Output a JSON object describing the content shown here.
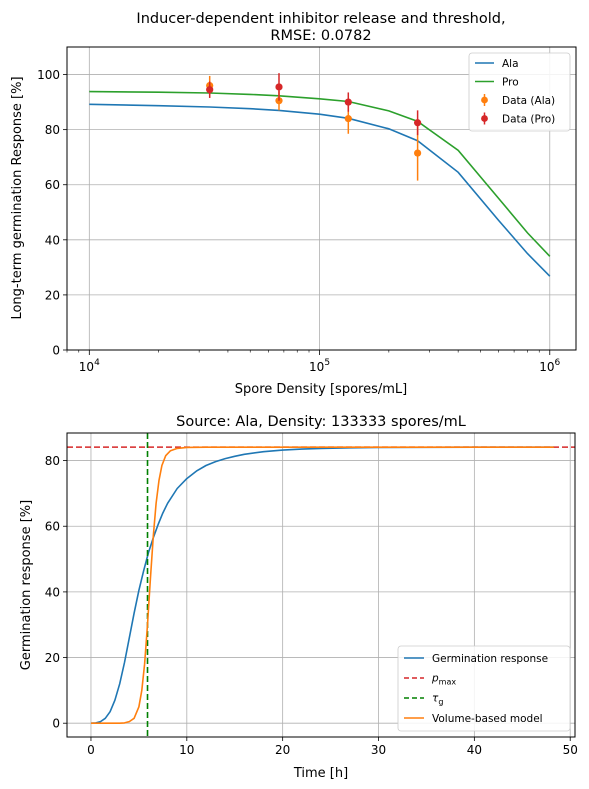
{
  "chart_data": [
    {
      "type": "line",
      "title": "Inducer-dependent inhibitor release and threshold,",
      "subtitle": "RMSE: 0.0782",
      "xlabel": "Spore Density [spores/mL]",
      "ylabel": "Long-term germination Response [%]",
      "xscale": "log",
      "xlim": [
        8000,
        1300000
      ],
      "ylim": [
        0,
        110
      ],
      "yticks": [
        0,
        20,
        40,
        60,
        80,
        100
      ],
      "xticks": [
        {
          "value": 10000,
          "base": "10",
          "exp": "4"
        },
        {
          "value": 100000,
          "base": "10",
          "exp": "5"
        },
        {
          "value": 1000000,
          "base": "10",
          "exp": "6"
        }
      ],
      "grid": true,
      "legend_position": "top-right",
      "series": [
        {
          "name": "Ala",
          "kind": "line",
          "color": "#1f77b4",
          "x": [
            10000,
            20000,
            33333,
            50000,
            66667,
            100000,
            133333,
            200000,
            266667,
            400000,
            600000,
            800000,
            1000000
          ],
          "y": [
            89.2,
            88.7,
            88.2,
            87.6,
            87.0,
            85.6,
            84.1,
            80.3,
            76.0,
            64.5,
            47.0,
            35.0,
            26.8
          ]
        },
        {
          "name": "Pro",
          "kind": "line",
          "color": "#2ca02c",
          "x": [
            10000,
            20000,
            33333,
            50000,
            66667,
            100000,
            133333,
            200000,
            266667,
            400000,
            600000,
            800000,
            1000000
          ],
          "y": [
            93.8,
            93.6,
            93.3,
            92.8,
            92.3,
            91.2,
            90.2,
            86.8,
            83.0,
            72.5,
            55.0,
            42.5,
            34.0
          ]
        },
        {
          "name": "Data (Ala)",
          "kind": "errorbar",
          "color": "#ff7f0e",
          "x": [
            33333,
            66667,
            133333,
            266667
          ],
          "y": [
            96.0,
            90.5,
            84.0,
            71.5
          ],
          "err": [
            3.5,
            3.5,
            5.5,
            10.0
          ]
        },
        {
          "name": "Data (Pro)",
          "kind": "errorbar",
          "color": "#d62728",
          "x": [
            33333,
            66667,
            133333,
            266667
          ],
          "y": [
            94.5,
            95.5,
            90.0,
            82.5
          ],
          "err": [
            3.0,
            5.0,
            3.5,
            4.5
          ]
        }
      ]
    },
    {
      "type": "line",
      "title": "Source: Ala, Density: 133333 spores/mL",
      "xlabel": "Time [h]",
      "ylabel": "Germination response [%]",
      "xlim": [
        -2.5,
        50.5
      ],
      "ylim": [
        -4.2,
        88.4
      ],
      "xticks": [
        0,
        10,
        20,
        30,
        40,
        50
      ],
      "yticks": [
        0,
        20,
        40,
        60,
        80
      ],
      "grid": true,
      "legend_position": "bottom-right",
      "p_max": 84.1,
      "tau_g": 5.9,
      "series": [
        {
          "name": "Germination response",
          "kind": "line",
          "color": "#1f77b4",
          "x": [
            0,
            0.5,
            1,
            1.5,
            2,
            2.5,
            3,
            3.5,
            4,
            4.5,
            5,
            5.5,
            6,
            6.5,
            7,
            7.5,
            8,
            9,
            10,
            11,
            12,
            13,
            14,
            15,
            16,
            18,
            20,
            22,
            24,
            27,
            30,
            35,
            40,
            45,
            48.3
          ],
          "y": [
            0,
            0.1,
            0.5,
            1.5,
            3.5,
            7.0,
            12.0,
            18.5,
            26.0,
            33.5,
            40.5,
            46.5,
            52.0,
            56.5,
            60.5,
            64.0,
            67.0,
            71.5,
            74.5,
            76.8,
            78.5,
            79.7,
            80.6,
            81.3,
            81.9,
            82.7,
            83.2,
            83.5,
            83.7,
            83.9,
            84.0,
            84.05,
            84.07,
            84.08,
            84.08
          ]
        },
        {
          "name": "$p_{\\max}$",
          "label_main": "p",
          "label_sub": "max",
          "kind": "hline",
          "color": "#d62728",
          "dash": true
        },
        {
          "name": "$\\tau_g$",
          "label_main": "τ",
          "label_sub": "g",
          "kind": "vline",
          "color": "#008000",
          "dash": true
        },
        {
          "name": "Volume-based model",
          "kind": "line",
          "color": "#ff7f0e",
          "x": [
            0,
            1,
            2,
            3,
            3.5,
            4,
            4.5,
            5,
            5.3,
            5.6,
            5.9,
            6.2,
            6.5,
            6.8,
            7.1,
            7.4,
            7.8,
            8.3,
            9,
            10,
            11,
            12,
            14,
            20,
            30,
            40,
            48.3
          ],
          "y": [
            0,
            0,
            0,
            0,
            0.1,
            0.5,
            1.5,
            5.0,
            10.0,
            18.0,
            30.0,
            44.0,
            57.0,
            67.0,
            74.0,
            78.5,
            81.5,
            83.0,
            83.7,
            84.0,
            84.05,
            84.08,
            84.08,
            84.08,
            84.08,
            84.08,
            84.08
          ]
        }
      ]
    }
  ]
}
